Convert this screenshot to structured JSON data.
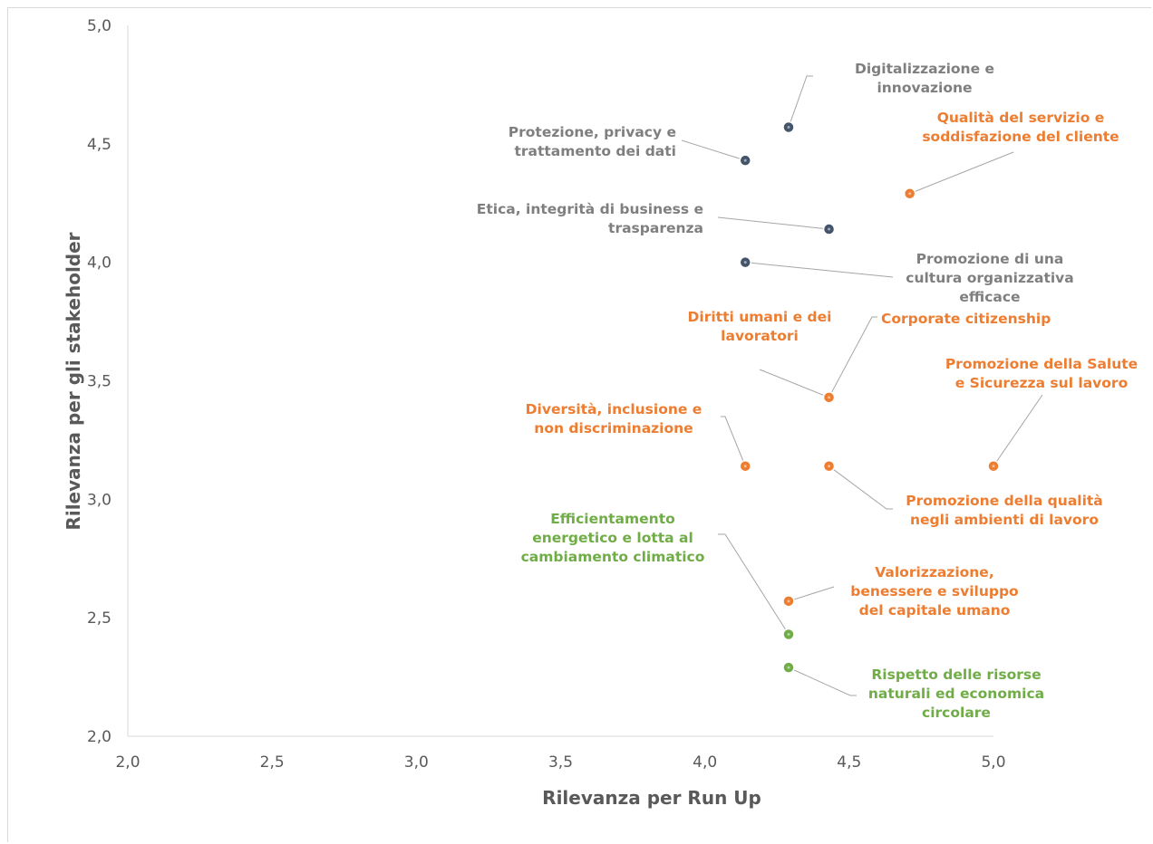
{
  "chart_data": {
    "type": "scatter",
    "title": "",
    "xlabel": "Rilevanza per Run Up",
    "ylabel": "Rilevanza per gli stakeholder",
    "xlim": [
      2.0,
      5.0
    ],
    "ylim": [
      2.0,
      5.0
    ],
    "x_ticks": [
      "2,0",
      "2,5",
      "3,0",
      "3,5",
      "4,0",
      "4,5",
      "5,0"
    ],
    "y_ticks": [
      "2,0",
      "2,5",
      "3,0",
      "3,5",
      "4,0",
      "4,5",
      "5,0"
    ],
    "grid": false,
    "legend": "none",
    "colors": {
      "governance": "#44546a",
      "governance_label": "#7f7f7f",
      "social": "#ed7d31",
      "environment": "#70ad47",
      "leader_line": "#a6a6a6",
      "axis": "#d9d9d9",
      "text": "#595959"
    },
    "points": [
      {
        "label_lines": [
          "Digitalizzazione e",
          "innovazione"
        ],
        "x": 4.29,
        "y": 4.57,
        "group": "governance"
      },
      {
        "label_lines": [
          "Protezione, privacy  e",
          "trattamento dei dati"
        ],
        "x": 4.14,
        "y": 4.43,
        "group": "governance"
      },
      {
        "label_lines": [
          "Etica, integrità di business e",
          "trasparenza"
        ],
        "x": 4.43,
        "y": 4.14,
        "group": "governance"
      },
      {
        "label_lines": [
          "Promozione di una",
          "cultura organizzativa",
          "efficace"
        ],
        "x": 4.14,
        "y": 4.0,
        "group": "governance"
      },
      {
        "label_lines": [
          "Qualità del servizio e",
          "soddisfazione del cliente"
        ],
        "x": 4.71,
        "y": 4.29,
        "group": "social"
      },
      {
        "label_lines": [
          "Diritti umani e dei",
          "lavoratori"
        ],
        "x": 4.43,
        "y": 3.43,
        "group": "social"
      },
      {
        "label_lines": [
          "Corporate citizenship"
        ],
        "x": 4.43,
        "y": 3.43,
        "group": "social"
      },
      {
        "label_lines": [
          "Promozione della Salute",
          "e Sicurezza sul lavoro"
        ],
        "x": 5.0,
        "y": 3.14,
        "group": "social"
      },
      {
        "label_lines": [
          "Diversità, inclusione e",
          "non discriminazione"
        ],
        "x": 4.14,
        "y": 3.14,
        "group": "social"
      },
      {
        "label_lines": [
          "Promozione della qualità",
          "negli ambienti di lavoro"
        ],
        "x": 4.43,
        "y": 3.14,
        "group": "social"
      },
      {
        "label_lines": [
          "Valorizzazione,",
          "benessere e sviluppo",
          "del capitale umano"
        ],
        "x": 4.29,
        "y": 2.57,
        "group": "social"
      },
      {
        "label_lines": [
          "Efficientamento",
          "energetico e lotta al",
          "cambiamento climatico"
        ],
        "x": 4.29,
        "y": 2.43,
        "group": "environment"
      },
      {
        "label_lines": [
          "Rispetto delle risorse",
          "naturali ed economica",
          "circolare"
        ],
        "x": 4.29,
        "y": 2.29,
        "group": "environment"
      }
    ]
  }
}
